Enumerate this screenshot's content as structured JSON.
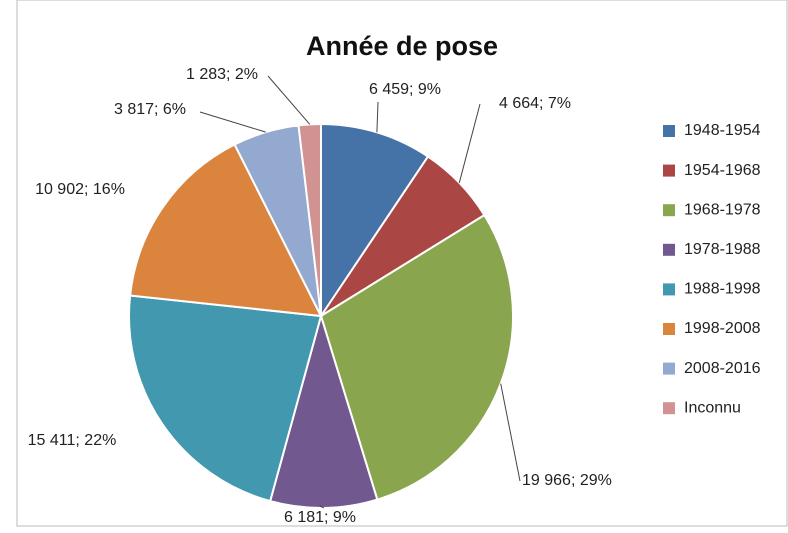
{
  "chart_data": {
    "type": "pie",
    "title": "Année de pose",
    "categories": [
      "1948-1954",
      "1954-1968",
      "1968-1978",
      "1978-1988",
      "1988-1998",
      "1998-2008",
      "2008-2016",
      "Inconnu"
    ],
    "values": [
      6459,
      4664,
      19966,
      6181,
      15411,
      10902,
      3817,
      1283
    ],
    "value_labels": [
      "6 459; 9%",
      "4 664; 7%",
      "19 966; 29%",
      "6 181; 9%",
      "15 411; 22%",
      "10 902; 16%",
      "3 817; 6%",
      "1 283; 2%"
    ],
    "colors": [
      "#4572a7",
      "#aa4643",
      "#89a54e",
      "#71588f",
      "#4198af",
      "#db843d",
      "#93a9cf",
      "#d19392"
    ],
    "legend": "right"
  }
}
